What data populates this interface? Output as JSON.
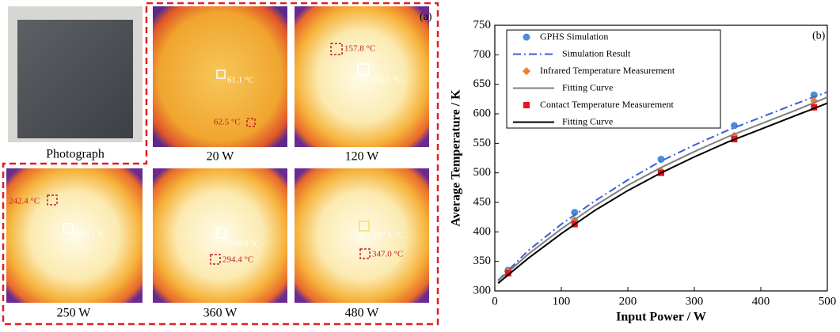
{
  "panel_a": {
    "label": "(a)",
    "images": [
      {
        "caption": "Photograph",
        "labels": []
      },
      {
        "caption": "20 W",
        "labels": [
          "61.1 °C",
          "62.5 °C"
        ]
      },
      {
        "caption": "120 W",
        "labels": [
          "157.8 °C",
          "156.3 °C"
        ]
      },
      {
        "caption": "250 W",
        "labels": [
          "242.4 °C",
          "241.1 °C"
        ]
      },
      {
        "caption": "360 W",
        "labels": [
          "288.0 °C",
          "294.4 °C"
        ]
      },
      {
        "caption": "480 W",
        "labels": [
          "337.5 °C",
          "347.0 °C"
        ]
      }
    ]
  },
  "chart_data": {
    "type": "line",
    "label": "(b)",
    "x_label": "Input Power / W",
    "y_label": "Average Temperature / K",
    "xlim": [
      0,
      500
    ],
    "xticks": [
      0,
      100,
      200,
      300,
      400,
      500
    ],
    "ylim": [
      300,
      750
    ],
    "yticks": [
      300,
      350,
      400,
      450,
      500,
      550,
      600,
      650,
      700,
      750
    ],
    "series": [
      {
        "name": "GPHS Simulation",
        "color": "#4a8fd8",
        "marker": "circle",
        "x": [
          20,
          120,
          250,
          360,
          480
        ],
        "values": [
          335,
          433,
          523,
          580,
          632
        ]
      },
      {
        "name": "Simulation Result",
        "color": "#3a5fd8",
        "line": "dashdot",
        "x": [
          5,
          50,
          100,
          150,
          200,
          250,
          300,
          350,
          400,
          450,
          500
        ],
        "values": [
          318,
          368,
          413,
          452,
          488,
          520,
          547,
          572,
          594,
          616,
          637
        ]
      },
      {
        "name": "Infrared Temperature Measurement",
        "color": "#ee7d31",
        "marker": "diamond",
        "x": [
          20,
          120,
          250,
          360,
          480
        ],
        "values": [
          333,
          420,
          503,
          563,
          622
        ]
      },
      {
        "name": "Fitting Curve",
        "color": "#808080",
        "line": "solid",
        "x": [
          5,
          50,
          100,
          150,
          200,
          250,
          300,
          350,
          400,
          450,
          500
        ],
        "values": [
          317,
          362,
          405,
          444,
          479,
          509,
          536,
          561,
          583,
          605,
          628
        ]
      },
      {
        "name": "Contact Temperature Measurement",
        "color": "#e8141c",
        "marker": "square",
        "x": [
          20,
          120,
          250,
          360,
          480
        ],
        "values": [
          330,
          413,
          500,
          557,
          611
        ]
      },
      {
        "name": "Fitting Curve",
        "color": "#000000",
        "line": "solid",
        "x": [
          5,
          50,
          100,
          150,
          200,
          250,
          300,
          350,
          400,
          450,
          500
        ],
        "values": [
          313,
          355,
          397,
          436,
          470,
          500,
          527,
          552,
          574,
          596,
          618
        ]
      }
    ]
  }
}
